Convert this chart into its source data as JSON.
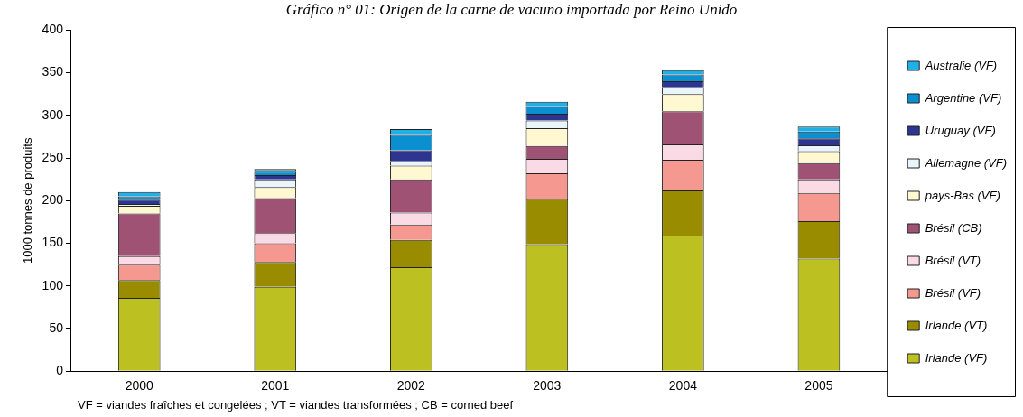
{
  "chart_data": {
    "type": "bar",
    "title": "Gráfico n° 01: Origen de la carne de vacuno importada por Reino Unido",
    "ylabel": "1000 tonnes de produits",
    "categories": [
      "2000",
      "2001",
      "2002",
      "2003",
      "2004",
      "2005"
    ],
    "stacked": true,
    "ylim": [
      0,
      400
    ],
    "yticks": [
      0,
      50,
      100,
      150,
      200,
      250,
      300,
      350,
      400
    ],
    "grid": false,
    "legend": "right",
    "annotations": [
      "VF = viandes fraîches et congelées ;  VT = viandes transformées ;  CB = corned beef"
    ],
    "series": [
      {
        "name": "Irlande (VF)",
        "color": "#bcc021",
        "values": [
          86,
          99,
          122,
          149,
          159,
          132
        ]
      },
      {
        "name": "Irlande (VT)",
        "color": "#9a8c00",
        "values": [
          21,
          29,
          32,
          53,
          53,
          44
        ]
      },
      {
        "name": "Brésil (VF)",
        "color": "#f59890",
        "values": [
          18,
          22,
          18,
          30,
          36,
          33
        ]
      },
      {
        "name": "Brésil (VT)",
        "color": "#fadae4",
        "values": [
          10,
          12,
          14,
          17,
          18,
          16
        ]
      },
      {
        "name": "Brésil (CB)",
        "color": "#a05275",
        "values": [
          50,
          41,
          39,
          15,
          39,
          19
        ]
      },
      {
        "name": "pays-Bas (VF)",
        "color": "#fff8d0",
        "values": [
          9,
          13,
          16,
          21,
          20,
          14
        ]
      },
      {
        "name": "Allemagne (VF)",
        "color": "#eaf4fb",
        "values": [
          2,
          9,
          5,
          9,
          8,
          7
        ]
      },
      {
        "name": "Uruguay (VF)",
        "color": "#2e3590",
        "values": [
          5,
          5,
          13,
          8,
          7,
          8
        ]
      },
      {
        "name": "Argentine (VF)",
        "color": "#0a8fd0",
        "values": [
          4,
          4,
          18,
          9,
          8,
          8
        ]
      },
      {
        "name": "Australie (VF)",
        "color": "#20b0e8",
        "values": [
          5,
          3,
          7,
          5,
          5,
          6
        ]
      }
    ]
  }
}
